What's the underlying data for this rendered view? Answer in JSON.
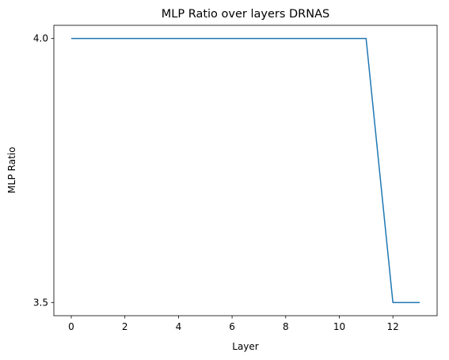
{
  "chart_data": {
    "type": "line",
    "title": "MLP Ratio over layers DRNAS",
    "xlabel": "Layer",
    "ylabel": "MLP Ratio",
    "x": [
      0,
      1,
      2,
      3,
      4,
      5,
      6,
      7,
      8,
      9,
      10,
      11,
      12,
      13
    ],
    "series": [
      {
        "values": [
          4.0,
          4.0,
          4.0,
          4.0,
          4.0,
          4.0,
          4.0,
          4.0,
          4.0,
          4.0,
          4.0,
          4.0,
          3.5,
          3.5
        ],
        "color": "#1f77b4"
      }
    ],
    "xticks": [
      0,
      2,
      4,
      6,
      8,
      10,
      12
    ],
    "xtick_labels": [
      "0",
      "2",
      "4",
      "6",
      "8",
      "10",
      "12"
    ],
    "yticks": [
      3.5,
      4.0
    ],
    "ytick_labels": [
      "3.5",
      "4.0"
    ],
    "xlim": [
      -0.65,
      13.65
    ],
    "ylim": [
      3.475,
      4.025
    ],
    "grid": false,
    "legend": "none"
  }
}
